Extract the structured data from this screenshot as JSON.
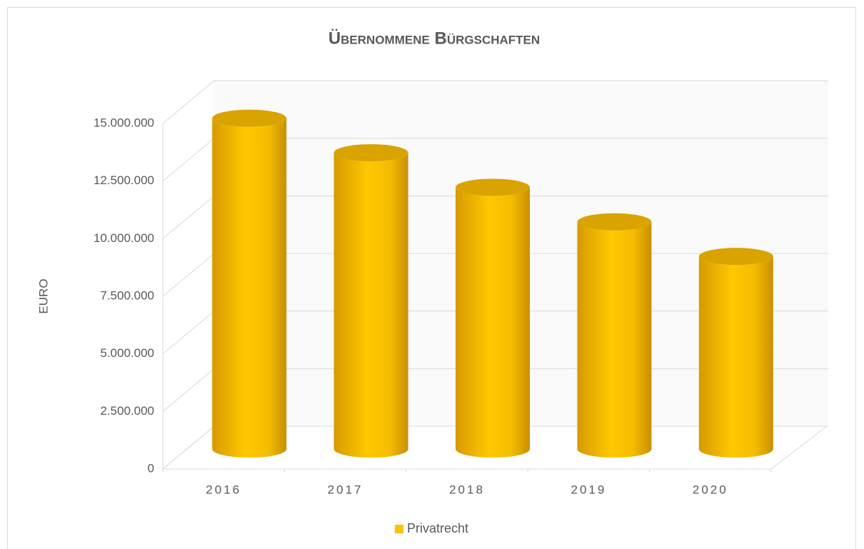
{
  "chart_data": {
    "type": "bar3d",
    "title": "Übernommene Bürgschaften",
    "y_label": "EURO",
    "categories": [
      "2016",
      "2017",
      "2018",
      "2019",
      "2020"
    ],
    "series": [
      {
        "name": "Privatrecht",
        "color": "#ffc000",
        "values": [
          14300000,
          12800000,
          11300000,
          9800000,
          8300000
        ]
      }
    ],
    "ylim": [
      0,
      15000000
    ],
    "yticks": [
      0,
      {
        "value": 2500000,
        "label": "2.500.000"
      },
      {
        "value": 5000000,
        "label": "5.000.000"
      },
      {
        "value": 7500000,
        "label": "7.500.000"
      },
      {
        "value": 10000000,
        "label": "10.000.000"
      },
      {
        "value": 12500000,
        "label": "12.500.000"
      },
      {
        "value": 15000000,
        "label": "15.000.000"
      }
    ],
    "grid": true,
    "legend": "bottom"
  }
}
